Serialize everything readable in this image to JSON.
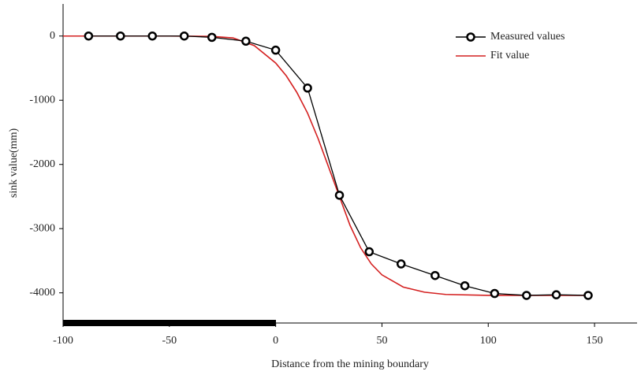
{
  "chart_data": {
    "type": "line",
    "x_label": "Distance from the mining boundary",
    "y_label": "sink value(mm)",
    "xlim": [
      -100,
      170
    ],
    "ylim": [
      -4470,
      500
    ],
    "xticks": [
      -100,
      -50,
      0,
      50,
      100,
      150
    ],
    "yticks": [
      -4000,
      -3000,
      -2000,
      -1000,
      0
    ],
    "legend": "upper right",
    "series": [
      {
        "name": "Measured values",
        "color": "#000000",
        "marker": true,
        "x": [
          -88,
          -73,
          -58,
          -43,
          -30,
          -14,
          0,
          15,
          30,
          44,
          59,
          75,
          89,
          103,
          118,
          132,
          147
        ],
        "values": [
          0,
          0,
          0,
          0,
          -20,
          -80,
          -220,
          -810,
          -2480,
          -3360,
          -3550,
          -3730,
          -3890,
          -4010,
          -4040,
          -4030,
          -4040
        ]
      },
      {
        "name": "Fit value",
        "color": "#d42020",
        "marker": false,
        "x": [
          -100,
          -50,
          -30,
          -20,
          -10,
          0,
          5,
          10,
          15,
          20,
          25,
          30,
          35,
          40,
          45,
          50,
          60,
          70,
          80,
          100,
          147
        ],
        "values": [
          0,
          0,
          -5,
          -30,
          -150,
          -420,
          -620,
          -880,
          -1200,
          -1600,
          -2050,
          -2500,
          -2950,
          -3300,
          -3550,
          -3720,
          -3910,
          -3990,
          -4025,
          -4040,
          -4040
        ]
      }
    ]
  }
}
